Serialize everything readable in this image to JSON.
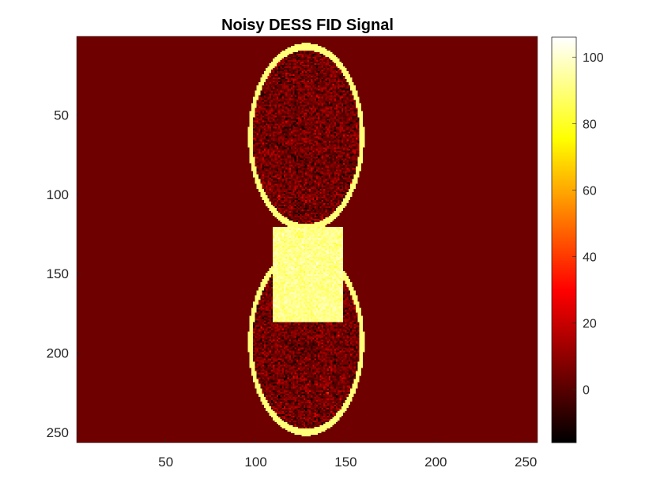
{
  "chart_data": {
    "type": "heatmap",
    "title": "Noisy DESS FID Signal",
    "xlabel": "",
    "ylabel": "",
    "xlim": [
      0.5,
      256.5
    ],
    "ylim": [
      0.5,
      256.5
    ],
    "y_direction": "reverse",
    "x_ticks": [
      50,
      100,
      150,
      200,
      250
    ],
    "x_tick_labels": [
      "50",
      "100",
      "150",
      "200",
      "250"
    ],
    "y_ticks": [
      50,
      100,
      150,
      200,
      250
    ],
    "y_tick_labels": [
      "50",
      "100",
      "150",
      "200",
      "250"
    ],
    "colormap": "hot",
    "color_limits": [
      -16,
      106
    ],
    "colorbar_ticks": [
      0,
      20,
      40,
      60,
      80,
      100
    ],
    "colorbar_tick_labels": [
      "0",
      "20",
      "40",
      "60",
      "80",
      "100"
    ],
    "background_value": 4,
    "regions": [
      {
        "shape": "ellipse-ring",
        "center_x": 128,
        "center_y": 64,
        "radius_x": 31,
        "radius_y": 57,
        "ring_value": 90,
        "interior_value": 4,
        "interior_noise": 8
      },
      {
        "shape": "ellipse-ring",
        "center_x": 128,
        "center_y": 193,
        "radius_x": 31,
        "radius_y": 57,
        "ring_value": 90,
        "interior_value": 4,
        "interior_noise": 8
      },
      {
        "shape": "rectangle",
        "x_range": [
          110,
          148
        ],
        "y_range": [
          121,
          180
        ],
        "value": 92,
        "noise": 4
      }
    ],
    "grid": false,
    "legend": "none",
    "colorbar_position": "right"
  }
}
